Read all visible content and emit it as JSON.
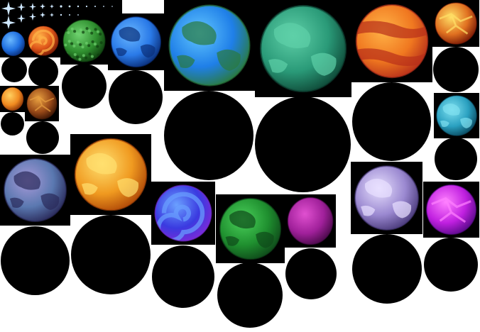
{
  "sheet": {
    "background": "#ffffff",
    "tile_background": "#000000",
    "star_color": "#cfe8ff"
  },
  "sprites": [
    {
      "name": "planet-blue-small",
      "palette": [
        "#6ab8ff",
        "#1f6fe0",
        "#0a2f7a"
      ],
      "pattern": "smooth"
    },
    {
      "name": "planet-orange-swirl-small",
      "palette": [
        "#ffb347",
        "#e0561a",
        "#7a1c06"
      ],
      "pattern": "swirl"
    },
    {
      "name": "planet-green-textured",
      "palette": [
        "#6fd26f",
        "#2f8f2f",
        "#0f3f0f"
      ],
      "pattern": "texture"
    },
    {
      "name": "planet-blue-continents-medium",
      "palette": [
        "#6ab8ff",
        "#2a7ae8",
        "#0a2f7a"
      ],
      "pattern": "continents"
    },
    {
      "name": "planet-earthlike-large",
      "palette": [
        "#62c6ff",
        "#1f7fe8",
        "#2a7a3f"
      ],
      "pattern": "continents"
    },
    {
      "name": "planet-teal-large",
      "palette": [
        "#5fd0a8",
        "#2a9a78",
        "#0f4a38"
      ],
      "pattern": "clouds"
    },
    {
      "name": "planet-orange-bands",
      "palette": [
        "#ffb347",
        "#f07820",
        "#b8301a"
      ],
      "pattern": "bands"
    },
    {
      "name": "planet-lava-small",
      "palette": [
        "#ffe066",
        "#e07020",
        "#7a1a06"
      ],
      "pattern": "lava"
    },
    {
      "name": "planet-orange-tiny",
      "palette": [
        "#ffd060",
        "#f08a20",
        "#8a3408"
      ],
      "pattern": "smooth"
    },
    {
      "name": "planet-brown-lava-tiny",
      "palette": [
        "#e8a040",
        "#9a4a18",
        "#3a1404"
      ],
      "pattern": "lava"
    },
    {
      "name": "planet-cyan-small",
      "palette": [
        "#7fe0f0",
        "#2aa0c0",
        "#0a4a60"
      ],
      "pattern": "clouds"
    },
    {
      "name": "planet-lavender-slate",
      "palette": [
        "#a89ad8",
        "#5a78b0",
        "#2a2a5a"
      ],
      "pattern": "continents"
    },
    {
      "name": "planet-sun-orange",
      "palette": [
        "#ffe070",
        "#f09a20",
        "#b04a08"
      ],
      "pattern": "clouds"
    },
    {
      "name": "planet-blue-purple-swirl",
      "palette": [
        "#6aa0ff",
        "#3a3ae0",
        "#7a2ad8"
      ],
      "pattern": "swirl"
    },
    {
      "name": "planet-green-spotted",
      "palette": [
        "#4ad05a",
        "#1f8f2f",
        "#0f4a1a"
      ],
      "pattern": "continents"
    },
    {
      "name": "planet-magenta-small",
      "palette": [
        "#e050d0",
        "#a0209a",
        "#4a0a4a"
      ],
      "pattern": "smooth"
    },
    {
      "name": "planet-lavender-white",
      "palette": [
        "#e8e0ff",
        "#9a88d0",
        "#4a3a7a"
      ],
      "pattern": "clouds"
    },
    {
      "name": "planet-violet-glow",
      "palette": [
        "#ff80ff",
        "#c020e0",
        "#5a0a8a"
      ],
      "pattern": "lava"
    }
  ]
}
